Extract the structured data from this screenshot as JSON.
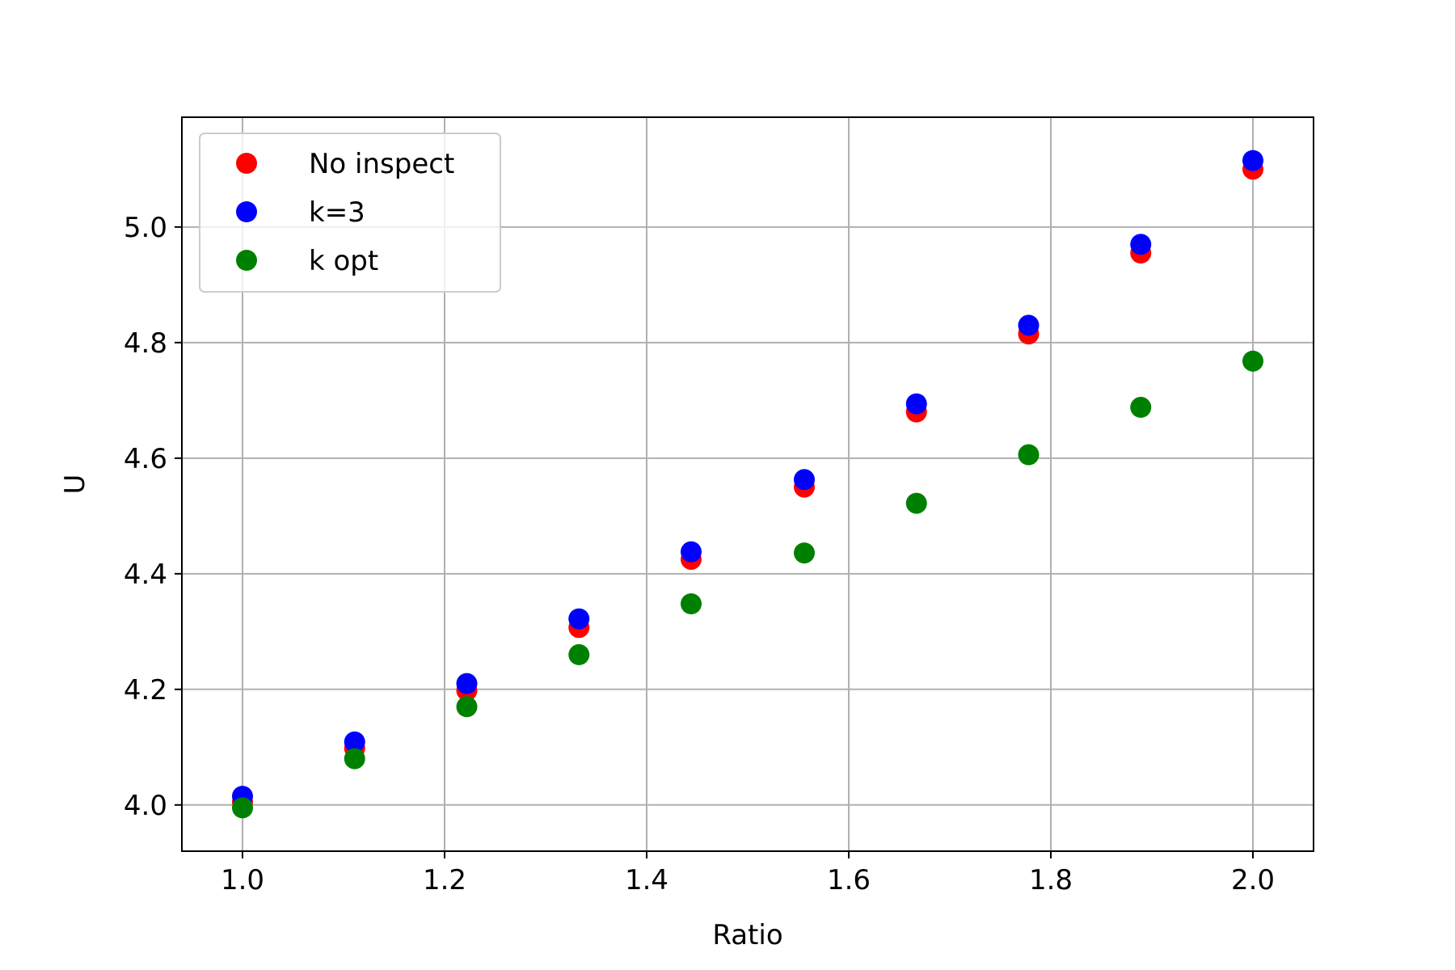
{
  "chart_data": {
    "type": "scatter",
    "title": "",
    "xlabel": "Ratio",
    "ylabel": "U",
    "xlim": [
      0.94,
      2.06
    ],
    "ylim": [
      3.92,
      5.19
    ],
    "grid": true,
    "legend_position": "top-left",
    "x": [
      1.0,
      1.111,
      1.222,
      1.333,
      1.444,
      1.556,
      1.667,
      1.778,
      1.889,
      2.0
    ],
    "x_ticks": [
      1.0,
      1.2,
      1.4,
      1.6,
      1.8,
      2.0
    ],
    "x_tick_labels": [
      "1.0",
      "1.2",
      "1.4",
      "1.6",
      "1.8",
      "2.0"
    ],
    "y_ticks": [
      4.0,
      4.2,
      4.4,
      4.6,
      4.8,
      5.0
    ],
    "y_tick_labels": [
      "4.0",
      "4.2",
      "4.4",
      "4.6",
      "4.8",
      "5.0"
    ],
    "series": [
      {
        "name": "No inspect",
        "color": "#ff0000",
        "values": [
          4.005,
          4.098,
          4.198,
          4.307,
          4.425,
          4.55,
          4.68,
          4.815,
          4.955,
          5.1
        ]
      },
      {
        "name": "k=3",
        "color": "#0000ff",
        "values": [
          4.015,
          4.109,
          4.21,
          4.322,
          4.438,
          4.563,
          4.694,
          4.83,
          4.97,
          5.115
        ]
      },
      {
        "name": "k opt",
        "color": "#008000",
        "values": [
          3.995,
          4.08,
          4.17,
          4.26,
          4.348,
          4.436,
          4.522,
          4.606,
          4.688,
          4.768
        ]
      }
    ]
  }
}
